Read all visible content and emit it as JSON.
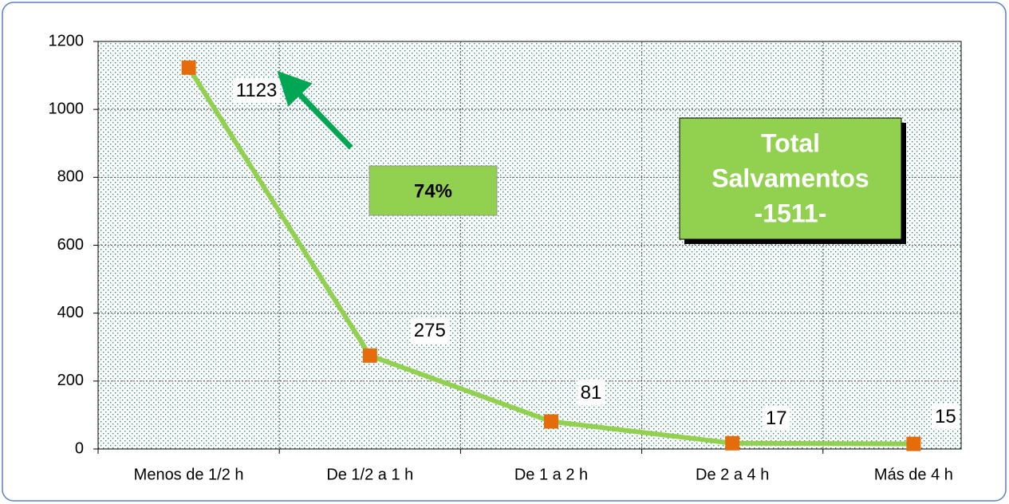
{
  "chart_data": {
    "type": "line",
    "categories": [
      "Menos de 1/2 h",
      "De 1/2 a 1 h",
      "De 1 a 2 h",
      "De  2 a 4 h",
      "Más de 4 h"
    ],
    "series": [
      {
        "name": null,
        "color": "#92d050",
        "marker_color": "#e46c0a",
        "values": [
          1123,
          275,
          81,
          17,
          15
        ]
      }
    ],
    "ylim": [
      0,
      1200
    ],
    "yticks": [
      0,
      200,
      400,
      600,
      800,
      1000,
      1200
    ],
    "grid": true,
    "annotations": [
      {
        "text": "74%"
      },
      {
        "text_lines": [
          "Total",
          "Salvamentos",
          "-1511-"
        ]
      }
    ]
  }
}
